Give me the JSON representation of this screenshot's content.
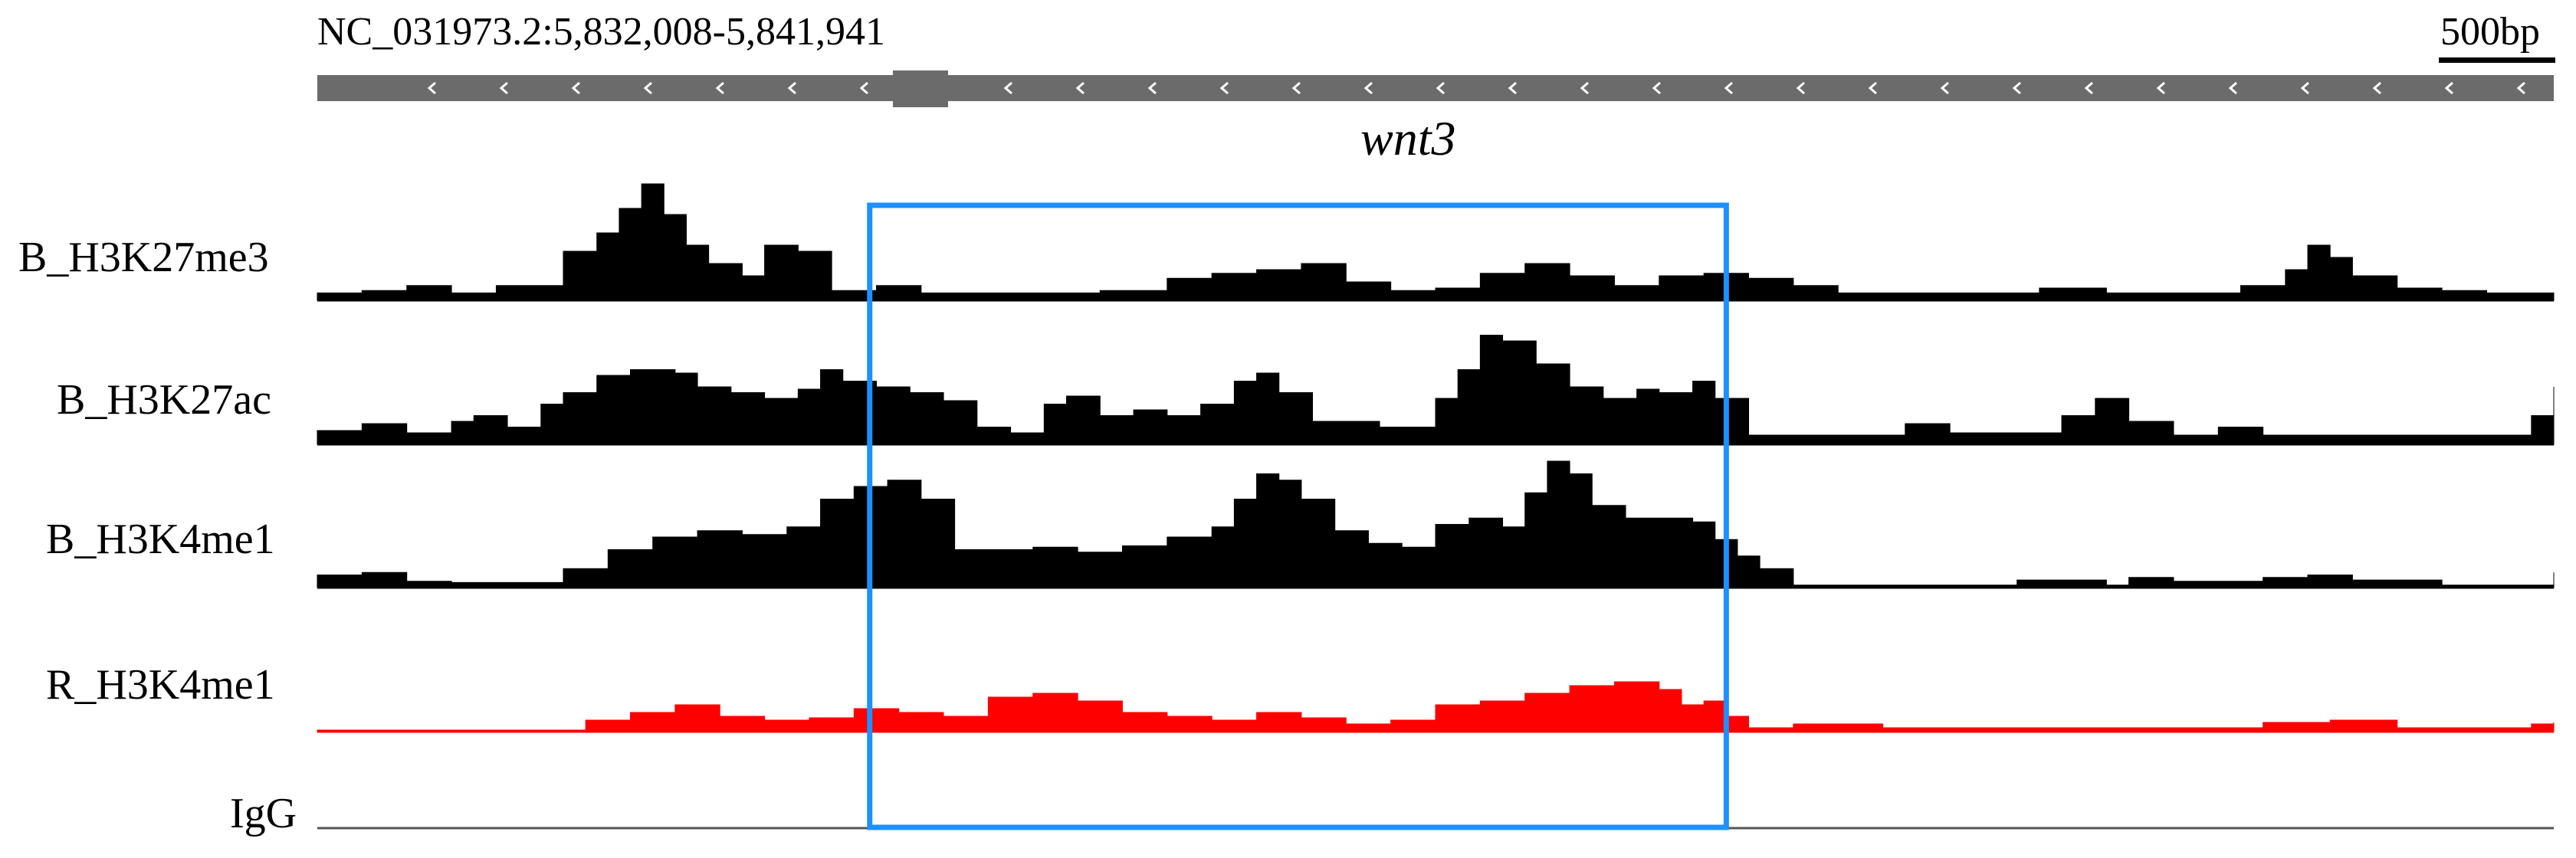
{
  "header": {
    "locus": "NC_031973.2:5,832,008-5,841,941",
    "scale": "500bp",
    "gene": "wnt3"
  },
  "tracks": [
    {
      "label": "B_H3K27me3",
      "color": "#000000"
    },
    {
      "label": "B_H3K27ac",
      "color": "#000000"
    },
    {
      "label": "B_H3K4me1",
      "color": "#000000"
    },
    {
      "label": "R_H3K4me1",
      "color": "#ff0000"
    },
    {
      "label": "IgG",
      "color": "#000000"
    }
  ],
  "colors": {
    "gene_model": "#6b6b6b",
    "highlight_box": "#1e90ff",
    "baseline": "#000000"
  },
  "chart_data": {
    "type": "area",
    "x_range_bp": [
      5832008,
      5841941
    ],
    "highlight_fraction": [
      0.247,
      0.63
    ],
    "signal_levels": {
      "B_H3K27me3": [
        [
          0.0,
          0.06
        ],
        [
          0.02,
          0.08
        ],
        [
          0.04,
          0.12
        ],
        [
          0.06,
          0.06
        ],
        [
          0.08,
          0.12
        ],
        [
          0.1,
          0.12
        ],
        [
          0.11,
          0.4
        ],
        [
          0.125,
          0.55
        ],
        [
          0.135,
          0.75
        ],
        [
          0.145,
          0.95
        ],
        [
          0.155,
          0.7
        ],
        [
          0.165,
          0.45
        ],
        [
          0.175,
          0.3
        ],
        [
          0.19,
          0.2
        ],
        [
          0.2,
          0.45
        ],
        [
          0.215,
          0.4
        ],
        [
          0.23,
          0.08
        ],
        [
          0.25,
          0.12
        ],
        [
          0.27,
          0.06
        ],
        [
          0.29,
          0.06
        ],
        [
          0.31,
          0.06
        ],
        [
          0.33,
          0.06
        ],
        [
          0.35,
          0.08
        ],
        [
          0.38,
          0.18
        ],
        [
          0.4,
          0.22
        ],
        [
          0.42,
          0.25
        ],
        [
          0.44,
          0.3
        ],
        [
          0.46,
          0.15
        ],
        [
          0.48,
          0.08
        ],
        [
          0.5,
          0.1
        ],
        [
          0.52,
          0.22
        ],
        [
          0.54,
          0.3
        ],
        [
          0.56,
          0.2
        ],
        [
          0.58,
          0.12
        ],
        [
          0.6,
          0.2
        ],
        [
          0.62,
          0.22
        ],
        [
          0.64,
          0.18
        ],
        [
          0.66,
          0.12
        ],
        [
          0.68,
          0.06
        ],
        [
          0.7,
          0.06
        ],
        [
          0.72,
          0.06
        ],
        [
          0.75,
          0.06
        ],
        [
          0.77,
          0.1
        ],
        [
          0.8,
          0.06
        ],
        [
          0.83,
          0.06
        ],
        [
          0.86,
          0.12
        ],
        [
          0.88,
          0.25
        ],
        [
          0.89,
          0.45
        ],
        [
          0.9,
          0.35
        ],
        [
          0.91,
          0.2
        ],
        [
          0.93,
          0.1
        ],
        [
          0.95,
          0.08
        ],
        [
          0.97,
          0.06
        ],
        [
          1.0,
          0.06
        ]
      ],
      "B_H3K27ac": [
        [
          0.0,
          0.12
        ],
        [
          0.02,
          0.18
        ],
        [
          0.04,
          0.1
        ],
        [
          0.06,
          0.2
        ],
        [
          0.07,
          0.25
        ],
        [
          0.085,
          0.15
        ],
        [
          0.1,
          0.35
        ],
        [
          0.11,
          0.45
        ],
        [
          0.125,
          0.6
        ],
        [
          0.14,
          0.65
        ],
        [
          0.16,
          0.62
        ],
        [
          0.17,
          0.5
        ],
        [
          0.185,
          0.45
        ],
        [
          0.2,
          0.4
        ],
        [
          0.215,
          0.48
        ],
        [
          0.225,
          0.65
        ],
        [
          0.235,
          0.55
        ],
        [
          0.25,
          0.5
        ],
        [
          0.265,
          0.45
        ],
        [
          0.28,
          0.38
        ],
        [
          0.295,
          0.15
        ],
        [
          0.31,
          0.1
        ],
        [
          0.325,
          0.35
        ],
        [
          0.335,
          0.42
        ],
        [
          0.35,
          0.25
        ],
        [
          0.365,
          0.3
        ],
        [
          0.38,
          0.25
        ],
        [
          0.395,
          0.35
        ],
        [
          0.41,
          0.55
        ],
        [
          0.42,
          0.62
        ],
        [
          0.43,
          0.45
        ],
        [
          0.445,
          0.2
        ],
        [
          0.46,
          0.2
        ],
        [
          0.475,
          0.15
        ],
        [
          0.49,
          0.15
        ],
        [
          0.5,
          0.4
        ],
        [
          0.51,
          0.65
        ],
        [
          0.52,
          0.95
        ],
        [
          0.53,
          0.9
        ],
        [
          0.545,
          0.7
        ],
        [
          0.56,
          0.5
        ],
        [
          0.575,
          0.4
        ],
        [
          0.59,
          0.48
        ],
        [
          0.6,
          0.45
        ],
        [
          0.615,
          0.55
        ],
        [
          0.625,
          0.4
        ],
        [
          0.64,
          0.08
        ],
        [
          0.66,
          0.08
        ],
        [
          0.69,
          0.08
        ],
        [
          0.71,
          0.18
        ],
        [
          0.73,
          0.1
        ],
        [
          0.76,
          0.1
        ],
        [
          0.78,
          0.25
        ],
        [
          0.795,
          0.4
        ],
        [
          0.81,
          0.2
        ],
        [
          0.83,
          0.08
        ],
        [
          0.85,
          0.15
        ],
        [
          0.87,
          0.08
        ],
        [
          0.9,
          0.08
        ],
        [
          0.95,
          0.08
        ],
        [
          0.99,
          0.25
        ],
        [
          1.0,
          0.5
        ]
      ],
      "B_H3K4me1": [
        [
          0.0,
          0.1
        ],
        [
          0.02,
          0.12
        ],
        [
          0.04,
          0.05
        ],
        [
          0.06,
          0.04
        ],
        [
          0.11,
          0.15
        ],
        [
          0.13,
          0.3
        ],
        [
          0.15,
          0.4
        ],
        [
          0.17,
          0.45
        ],
        [
          0.19,
          0.42
        ],
        [
          0.21,
          0.48
        ],
        [
          0.225,
          0.7
        ],
        [
          0.24,
          0.8
        ],
        [
          0.255,
          0.85
        ],
        [
          0.27,
          0.7
        ],
        [
          0.285,
          0.3
        ],
        [
          0.3,
          0.3
        ],
        [
          0.32,
          0.32
        ],
        [
          0.34,
          0.28
        ],
        [
          0.36,
          0.33
        ],
        [
          0.38,
          0.4
        ],
        [
          0.4,
          0.48
        ],
        [
          0.41,
          0.7
        ],
        [
          0.42,
          0.9
        ],
        [
          0.43,
          0.85
        ],
        [
          0.44,
          0.7
        ],
        [
          0.455,
          0.45
        ],
        [
          0.47,
          0.35
        ],
        [
          0.485,
          0.32
        ],
        [
          0.5,
          0.5
        ],
        [
          0.515,
          0.55
        ],
        [
          0.53,
          0.48
        ],
        [
          0.54,
          0.75
        ],
        [
          0.55,
          1.0
        ],
        [
          0.56,
          0.9
        ],
        [
          0.57,
          0.65
        ],
        [
          0.585,
          0.55
        ],
        [
          0.6,
          0.55
        ],
        [
          0.615,
          0.52
        ],
        [
          0.625,
          0.38
        ],
        [
          0.635,
          0.25
        ],
        [
          0.645,
          0.15
        ],
        [
          0.66,
          0.02
        ],
        [
          0.75,
          0.02
        ],
        [
          0.76,
          0.06
        ],
        [
          0.8,
          0.02
        ],
        [
          0.81,
          0.08
        ],
        [
          0.83,
          0.05
        ],
        [
          0.87,
          0.08
        ],
        [
          0.89,
          0.1
        ],
        [
          0.91,
          0.06
        ],
        [
          0.95,
          0.02
        ],
        [
          0.99,
          0.02
        ],
        [
          1.0,
          0.12
        ]
      ],
      "R_H3K4me1": [
        [
          0.0,
          0.02
        ],
        [
          0.1,
          0.02
        ],
        [
          0.12,
          0.15
        ],
        [
          0.14,
          0.25
        ],
        [
          0.16,
          0.35
        ],
        [
          0.18,
          0.2
        ],
        [
          0.2,
          0.15
        ],
        [
          0.22,
          0.18
        ],
        [
          0.24,
          0.3
        ],
        [
          0.26,
          0.25
        ],
        [
          0.28,
          0.2
        ],
        [
          0.3,
          0.45
        ],
        [
          0.32,
          0.5
        ],
        [
          0.34,
          0.4
        ],
        [
          0.36,
          0.25
        ],
        [
          0.38,
          0.2
        ],
        [
          0.4,
          0.15
        ],
        [
          0.42,
          0.25
        ],
        [
          0.44,
          0.18
        ],
        [
          0.46,
          0.1
        ],
        [
          0.48,
          0.15
        ],
        [
          0.5,
          0.35
        ],
        [
          0.52,
          0.4
        ],
        [
          0.54,
          0.5
        ],
        [
          0.56,
          0.6
        ],
        [
          0.58,
          0.65
        ],
        [
          0.6,
          0.55
        ],
        [
          0.61,
          0.35
        ],
        [
          0.62,
          0.4
        ],
        [
          0.63,
          0.2
        ],
        [
          0.64,
          0.05
        ],
        [
          0.66,
          0.1
        ],
        [
          0.7,
          0.05
        ],
        [
          0.75,
          0.05
        ],
        [
          0.8,
          0.05
        ],
        [
          0.85,
          0.05
        ],
        [
          0.87,
          0.12
        ],
        [
          0.9,
          0.15
        ],
        [
          0.93,
          0.05
        ],
        [
          0.97,
          0.05
        ],
        [
          0.99,
          0.1
        ],
        [
          1.0,
          0.12
        ]
      ],
      "IgG": [
        [
          0.0,
          0.0
        ],
        [
          1.0,
          0.0
        ]
      ]
    }
  }
}
